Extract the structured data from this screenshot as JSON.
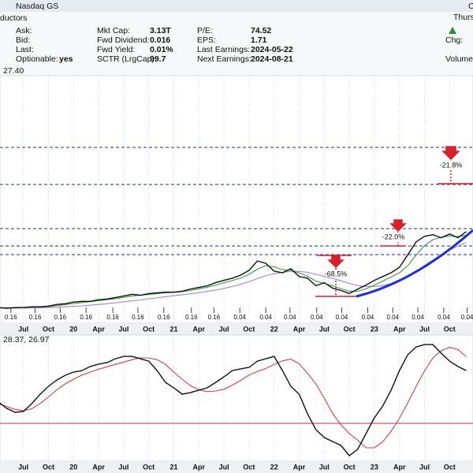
{
  "header": {
    "exchange": "Nasdaq GS",
    "top_right": "C",
    "industry": "ductors",
    "day": "Thurs",
    "col1": [
      {
        "label": "Ask:"
      },
      {
        "label": "Bid:"
      },
      {
        "label": "Last:"
      },
      {
        "label": "Optionable:",
        "value": "yes"
      }
    ],
    "col2": [
      {
        "label": "Mkt Cap:",
        "value": "3.13T"
      },
      {
        "label": "Fwd Dividend:",
        "value": "0.016"
      },
      {
        "label": "Fwd Yield:",
        "value": "0.01%"
      },
      {
        "label": "SCTR (LrgCap):",
        "value": "99.7"
      }
    ],
    "col3": [
      {
        "label": "P/E:",
        "value": "74.52"
      },
      {
        "label": "EPS:",
        "value": "1.71"
      },
      {
        "label": "Last Earnings:",
        "value": "2024-05-22"
      },
      {
        "label": "Next Earnings:",
        "value": "2024-08-21"
      }
    ],
    "col4": [
      {
        "label": "Chg:"
      },
      {
        "label": "Volume:"
      }
    ]
  },
  "chart_data": [
    {
      "type": "line",
      "label": "27.40",
      "annotations": [
        "-68.5%",
        "-22.0%",
        "-21.8%"
      ],
      "x": [
        3,
        4,
        5,
        6,
        7,
        8,
        9,
        10,
        11,
        12,
        13,
        14,
        15,
        16,
        17,
        18,
        19,
        20,
        21,
        22,
        23,
        24,
        25,
        26,
        27,
        28,
        29,
        30,
        31,
        32,
        33,
        34,
        35,
        36,
        37,
        38,
        39,
        40,
        41,
        42,
        43,
        44,
        45,
        46,
        47,
        48,
        49,
        50,
        51,
        52,
        53,
        54,
        55,
        56,
        57,
        58,
        59
      ],
      "xlim": [
        3.2,
        59.8
      ],
      "ylim": [
        0,
        100
      ],
      "grid": true,
      "xticks": [
        {
          "value": 6,
          "label": "Jul"
        },
        {
          "value": 9,
          "label": "Oct"
        },
        {
          "value": 12,
          "label": "20"
        },
        {
          "value": 15,
          "label": "Apr"
        },
        {
          "value": 18,
          "label": "Jul"
        },
        {
          "value": 21,
          "label": "Oct"
        },
        {
          "value": 24,
          "label": "21"
        },
        {
          "value": 27,
          "label": "Apr"
        },
        {
          "value": 30,
          "label": "Jul"
        },
        {
          "value": 33,
          "label": "Oct"
        },
        {
          "value": 36,
          "label": "22"
        },
        {
          "value": 39,
          "label": "Apr"
        },
        {
          "value": 42,
          "label": "Jul"
        },
        {
          "value": 45,
          "label": "Oct"
        },
        {
          "value": 48,
          "label": "23"
        },
        {
          "value": 51,
          "label": "Apr"
        },
        {
          "value": 54,
          "label": "Jul"
        },
        {
          "value": 57,
          "label": "Oct"
        }
      ],
      "series": [
        {
          "color": "#ad7fd6",
          "values": [
            3.0,
            3.0,
            3.0,
            3.1,
            3.1,
            3.2,
            3.3,
            3.4,
            3.6,
            3.8,
            4.0,
            4.3,
            4.6,
            4.9,
            5.3,
            5.7,
            6.1,
            6.5,
            7.0,
            7.4,
            7.9,
            8.3,
            8.7,
            9.1,
            9.6,
            10.1,
            10.7,
            11.4,
            12.2,
            13.1,
            14.2,
            15.5,
            16.8,
            17.6,
            18.2,
            18.6,
            18.6,
            18.2,
            17.3,
            16.5,
            15.6,
            14.6,
            13.5,
            12.6,
            12.2,
            12.2,
            12.6,
            13.4,
            14.6,
            16.4,
            18.6,
            21.0,
            23.4,
            25.6,
            27.6,
            29.3,
            30.8
          ]
        },
        {
          "color": "#3c9a3c",
          "values": [
            3.2,
            3.2,
            3.2,
            3.3,
            3.4,
            3.5,
            3.7,
            4.1,
            4.5,
            5.0,
            5.4,
            5.8,
            6.2,
            6.6,
            7.0,
            7.6,
            8.2,
            8.5,
            8.8,
            9.2,
            9.5,
            9.7,
            10.0,
            10.5,
            11.2,
            11.9,
            12.8,
            13.8,
            14.7,
            15.8,
            17.3,
            19.5,
            21.0,
            20.5,
            19.3,
            19.0,
            18.0,
            16.5,
            14.5,
            13.5,
            12.5,
            11.2,
            10.2,
            10.2,
            11.2,
            12.8,
            14.5,
            16.2,
            18.0,
            21.0,
            25.5,
            29.5,
            32.0,
            33.0,
            33.5,
            33.3,
            33.8
          ]
        },
        {
          "color": "#111111",
          "values": [
            3.3,
            3.0,
            3.3,
            3.3,
            3.6,
            3.6,
            3.9,
            4.6,
            4.9,
            5.6,
            5.9,
            5.9,
            6.6,
            6.9,
            7.5,
            8.2,
            8.9,
            8.5,
            9.2,
            9.5,
            9.8,
            9.8,
            10.2,
            11.1,
            11.8,
            12.5,
            13.8,
            14.8,
            15.7,
            17.0,
            19.0,
            23.0,
            22.0,
            18.7,
            18.0,
            19.7,
            16.4,
            15.7,
            12.5,
            13.8,
            11.5,
            10.5,
            9.2,
            11.1,
            12.8,
            14.8,
            16.4,
            18.0,
            20.3,
            25.6,
            31.1,
            33.4,
            34.1,
            32.8,
            34.4,
            32.8,
            35.4
          ]
        }
      ],
      "dividends": {
        "x": [
          4.5,
          7.4,
          10.4,
          13.5,
          16.7,
          19.7,
          22.8,
          26.1,
          28.8,
          31.9,
          35.0,
          37.9,
          41.1,
          44.1,
          47.2,
          50.2,
          53.2,
          56.3,
          59.1
        ],
        "values": [
          0.16,
          0.16,
          0.16,
          0.16,
          0.16,
          0.16,
          0.16,
          0.16,
          0.16,
          0.04,
          0.04,
          0.04,
          0.04,
          0.04,
          0.04,
          0.04,
          0.04,
          0.04,
          0.04
        ]
      }
    },
    {
      "type": "line",
      "label": "28.37, 26.97",
      "x": [
        3,
        4,
        5,
        6,
        7,
        8,
        9,
        10,
        11,
        12,
        13,
        14,
        15,
        16,
        17,
        18,
        19,
        20,
        21,
        22,
        23,
        24,
        25,
        26,
        27,
        28,
        29,
        30,
        31,
        32,
        33,
        34,
        35,
        36,
        37,
        38,
        39,
        40,
        41,
        42,
        43,
        44,
        45,
        46,
        47,
        48,
        49,
        50,
        51,
        52,
        53,
        54,
        55,
        56,
        57,
        58,
        59
      ],
      "xlim": [
        3.2,
        59.8
      ],
      "ylim": [
        0,
        100
      ],
      "grid": true,
      "reference_line": 28.7,
      "xticks": [
        {
          "value": 6,
          "label": "Jul"
        },
        {
          "value": 9,
          "label": "Oct"
        },
        {
          "value": 12,
          "label": "20"
        },
        {
          "value": 15,
          "label": "Apr"
        },
        {
          "value": 18,
          "label": "Jul"
        },
        {
          "value": 21,
          "label": "Oct"
        },
        {
          "value": 24,
          "label": "21"
        },
        {
          "value": 27,
          "label": "Apr"
        },
        {
          "value": 30,
          "label": "Jul"
        },
        {
          "value": 33,
          "label": "Oct"
        },
        {
          "value": 36,
          "label": "22"
        },
        {
          "value": 39,
          "label": "Apr"
        },
        {
          "value": 42,
          "label": "Jul"
        },
        {
          "value": 45,
          "label": "Oct"
        },
        {
          "value": 48,
          "label": "23"
        },
        {
          "value": 51,
          "label": "Apr"
        },
        {
          "value": 54,
          "label": "Jul"
        },
        {
          "value": 57,
          "label": "Oct"
        }
      ],
      "series": [
        {
          "color": "#d0404a",
          "values": [
            45,
            43,
            40.5,
            39.5,
            41,
            45.5,
            51,
            57,
            62,
            66,
            69.5,
            72,
            74.5,
            76.5,
            78.5,
            80.5,
            82.5,
            84,
            84,
            82.5,
            78.5,
            72,
            66,
            60.5,
            57,
            55.5,
            56,
            57.5,
            61,
            65,
            69.5,
            72.5,
            75,
            78.5,
            81.5,
            83,
            79,
            71,
            62,
            50,
            37,
            27.5,
            20,
            14.5,
            8,
            8,
            13,
            22,
            33,
            46,
            60,
            73,
            84,
            90,
            93,
            91,
            85
          ]
        },
        {
          "color": "#111111",
          "values": [
            46.7,
            41.3,
            38,
            38.7,
            45.3,
            53.3,
            60,
            65.3,
            69.3,
            72,
            73.3,
            76.7,
            78.7,
            80,
            83.3,
            85.3,
            85.3,
            83.3,
            81.3,
            73.3,
            63.3,
            58.7,
            53.3,
            54.7,
            56.7,
            58.7,
            63.3,
            68,
            73.3,
            74.7,
            76,
            81.3,
            83.3,
            85.3,
            73.3,
            60,
            53.3,
            36.7,
            23.3,
            16.7,
            13.3,
            10,
            1.3,
            6.7,
            20,
            33.3,
            43.3,
            56.7,
            73.3,
            86.7,
            93.3,
            95.3,
            95.3,
            88,
            81.3,
            76.7,
            73.3
          ]
        }
      ]
    }
  ]
}
